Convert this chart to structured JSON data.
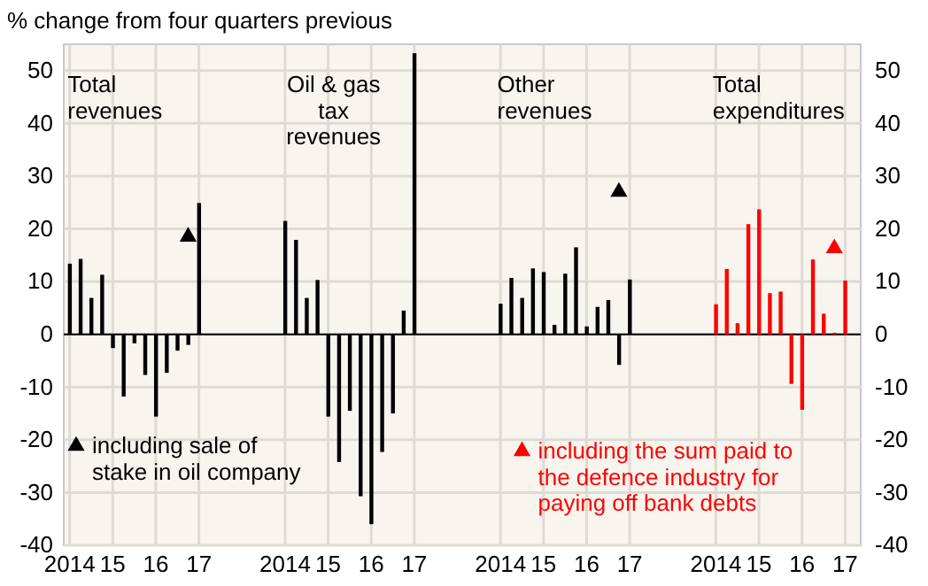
{
  "chart_data": {
    "type": "bar",
    "title": "% change from four quarters previous",
    "categories": [
      "2014",
      null,
      null,
      null,
      "15",
      null,
      null,
      null,
      "16",
      null,
      null,
      null,
      "17",
      null,
      null,
      null,
      null,
      null,
      null,
      null,
      "2014",
      null,
      null,
      null,
      "15",
      null,
      null,
      null,
      "16",
      null,
      null,
      null,
      "17",
      null,
      null,
      null,
      null,
      null,
      null,
      null,
      "2014",
      null,
      null,
      null,
      "15",
      null,
      null,
      null,
      "16",
      null,
      null,
      null,
      "17",
      null,
      null,
      null,
      null,
      null,
      null,
      null,
      "2014",
      null,
      null,
      null,
      "15",
      null,
      null,
      null,
      "16",
      null,
      null,
      null,
      "17"
    ],
    "series": [
      {
        "values": [
          13.4,
          14.3,
          6.9,
          11.3,
          -2.6,
          -11.8,
          -1.7,
          -7.7,
          -15.6,
          -7.3,
          -3.1,
          -2.0,
          24.9,
          null,
          null,
          null,
          null,
          null,
          null,
          null,
          21.5,
          17.9,
          6.9,
          10.3,
          -15.6,
          -24.2,
          -14.5,
          -30.7,
          -36.0,
          -22.3,
          -15.0,
          4.5,
          53.3,
          null,
          null,
          null,
          null,
          null,
          null,
          null,
          5.8,
          10.7,
          6.9,
          12.5,
          11.8,
          1.8,
          11.5,
          16.5,
          1.5,
          5.2,
          6.5,
          -5.8,
          10.4,
          null,
          null,
          null,
          null,
          null,
          null,
          null,
          5.7,
          12.4,
          2.1,
          20.9,
          23.7,
          7.8,
          8.1,
          -9.4,
          -14.3,
          14.2,
          3.9,
          0.3,
          10.2
        ],
        "colors": [
          "#000000",
          "#000000",
          "#000000",
          "#000000",
          "#000000",
          "#000000",
          "#000000",
          "#000000",
          "#000000",
          "#000000",
          "#000000",
          "#000000",
          "#000000",
          null,
          null,
          null,
          null,
          null,
          null,
          null,
          "#000000",
          "#000000",
          "#000000",
          "#000000",
          "#000000",
          "#000000",
          "#000000",
          "#000000",
          "#000000",
          "#000000",
          "#000000",
          "#000000",
          "#000000",
          null,
          null,
          null,
          null,
          null,
          null,
          null,
          "#000000",
          "#000000",
          "#000000",
          "#000000",
          "#000000",
          "#000000",
          "#000000",
          "#000000",
          "#000000",
          "#000000",
          "#000000",
          "#000000",
          "#000000",
          null,
          null,
          null,
          null,
          null,
          null,
          null,
          "#ff0000",
          "#ff0000",
          "#ff0000",
          "#ff0000",
          "#ff0000",
          "#ff0000",
          "#ff0000",
          "#ff0000",
          "#ff0000",
          "#ff0000",
          "#ff0000",
          "#ff0000",
          "#ff0000"
        ]
      },
      {
        "type": "scatter",
        "name": "including sale of stake in oil company",
        "color": "#000000",
        "marker": "triangle",
        "values": [
          null,
          null,
          null,
          null,
          null,
          null,
          null,
          null,
          null,
          null,
          null,
          18.5,
          null,
          null,
          null,
          null,
          null,
          null,
          null,
          null,
          null,
          null,
          null,
          null,
          null,
          null,
          null,
          null,
          null,
          null,
          null,
          null,
          null,
          null,
          null,
          null,
          null,
          null,
          null,
          null,
          null,
          null,
          null,
          null,
          null,
          null,
          null,
          null,
          null,
          null,
          null,
          27.0,
          null,
          null,
          null,
          null,
          null,
          null,
          null,
          null,
          null,
          null,
          null,
          null,
          null,
          null,
          null,
          null,
          null,
          null,
          null,
          null,
          null
        ]
      },
      {
        "type": "scatter",
        "name": "including the sum paid to the defence industry for paying off bank debts",
        "color": "#ff0000",
        "marker": "triangle",
        "values": [
          null,
          null,
          null,
          null,
          null,
          null,
          null,
          null,
          null,
          null,
          null,
          null,
          null,
          null,
          null,
          null,
          null,
          null,
          null,
          null,
          null,
          null,
          null,
          null,
          null,
          null,
          null,
          null,
          null,
          null,
          null,
          null,
          null,
          null,
          null,
          null,
          null,
          null,
          null,
          null,
          null,
          null,
          null,
          null,
          null,
          null,
          null,
          null,
          null,
          null,
          null,
          null,
          null,
          null,
          null,
          null,
          null,
          null,
          null,
          null,
          null,
          null,
          null,
          null,
          null,
          null,
          null,
          null,
          null,
          null,
          null,
          16.3,
          null
        ]
      }
    ],
    "annotations": [
      "Total revenues",
      "Oil & gas tax revenues",
      "Other revenues",
      "Total expenditures"
    ],
    "ylim": [
      -40,
      55
    ],
    "yticks": [
      -40,
      -30,
      -20,
      -10,
      0,
      10,
      20,
      30,
      40,
      50
    ],
    "y2lim": [
      -40,
      55
    ],
    "y2ticks": [
      -40,
      -30,
      -20,
      -10,
      0,
      10,
      20,
      30,
      40,
      50
    ],
    "grid": true,
    "legend": "bottom"
  }
}
